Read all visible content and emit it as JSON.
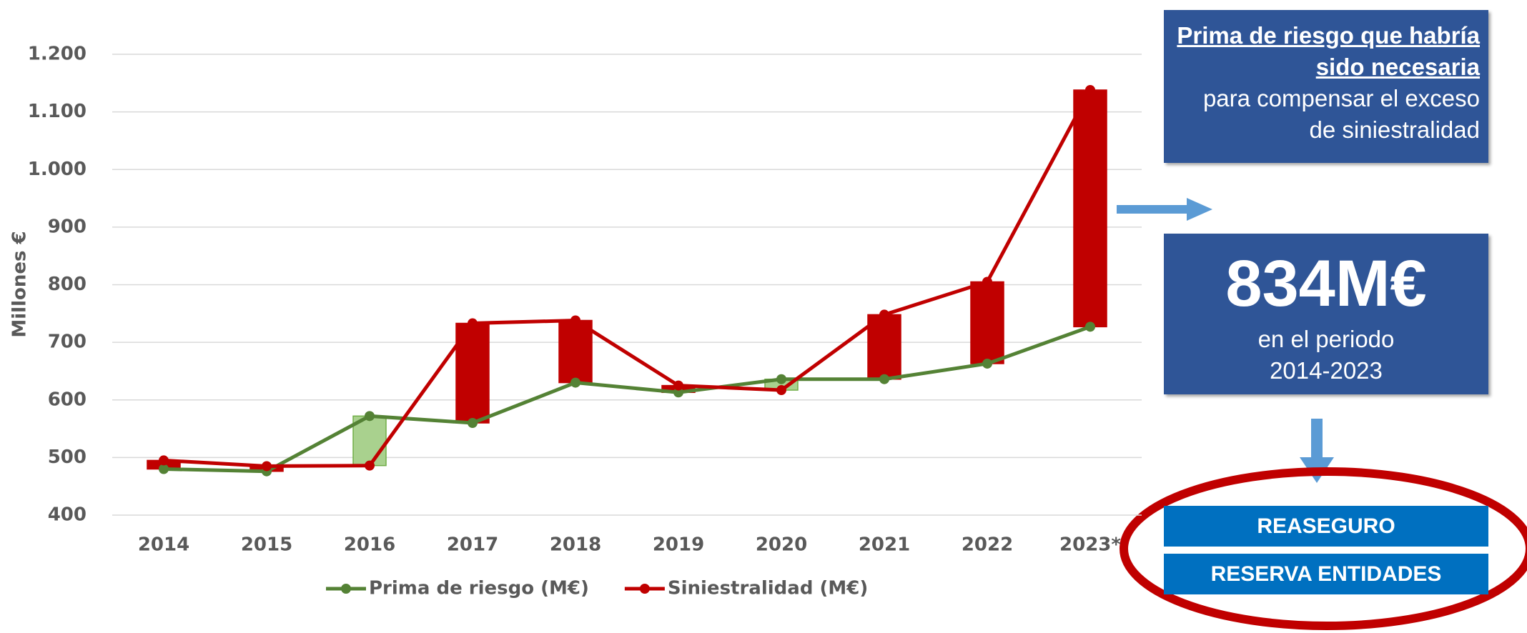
{
  "chart_data": {
    "type": "line",
    "y_label": "Millones €",
    "categories": [
      "2014",
      "2015",
      "2016",
      "2017",
      "2018",
      "2019",
      "2020",
      "2021",
      "2022",
      "2023*"
    ],
    "series": [
      {
        "name": "Prima de riesgo (M€)",
        "color": "#548235",
        "values": [
          480,
          476,
          572,
          560,
          630,
          613,
          636,
          636,
          663,
          727
        ]
      },
      {
        "name": "Siniestralidad (M€)",
        "color": "#c00000",
        "values": [
          495,
          485,
          486,
          733,
          738,
          625,
          617,
          748,
          805,
          1138
        ]
      }
    ],
    "up_bar_color": "#c00000",
    "down_bar_color": "#a9d18e",
    "ylim": [
      400,
      1200
    ],
    "yticks": [
      400,
      500,
      600,
      700,
      800,
      900,
      {
        "value": 1000,
        "label": "1.000"
      },
      {
        "value": 1100,
        "label": "1.100"
      },
      {
        "value": 1200,
        "label": "1.200"
      }
    ],
    "grid": true,
    "legend": "bottom"
  },
  "panel": {
    "note_emphasis": "Prima de riesgo que habría sido necesaria",
    "note_text": "para compensar el exceso de siniestralidad",
    "total": "834M€",
    "period": "en el periodo 2014-2023",
    "buttons": [
      "REASEGURO",
      "RESERVA ENTIDADES"
    ]
  }
}
